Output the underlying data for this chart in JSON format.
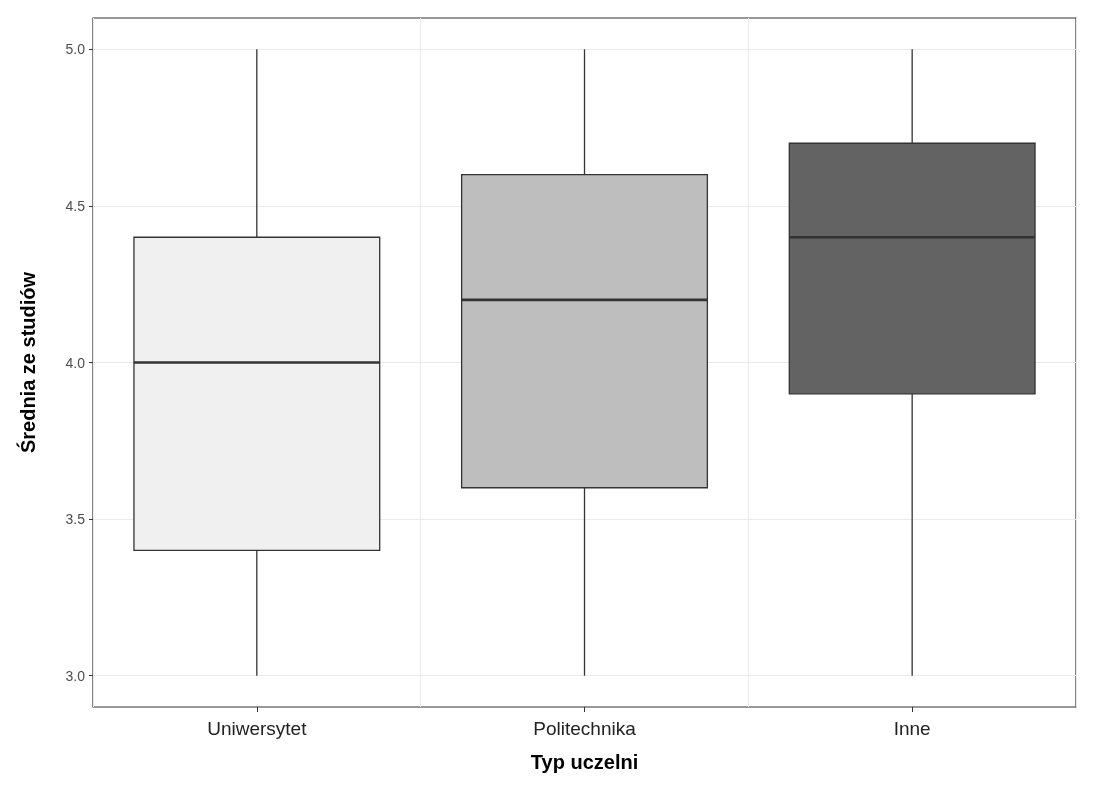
{
  "chart_data": {
    "type": "box",
    "xlabel": "Typ uczelni",
    "ylabel": "Średnia ze studiów",
    "categories": [
      "Uniwersytet",
      "Politechnika",
      "Inne"
    ],
    "boxes": [
      {
        "low": 3.0,
        "q1": 3.4,
        "median": 4.0,
        "q3": 4.4,
        "high": 5.0
      },
      {
        "low": 3.0,
        "q1": 3.6,
        "median": 4.2,
        "q3": 4.6,
        "high": 5.0
      },
      {
        "low": 3.0,
        "q1": 3.9,
        "median": 4.4,
        "q3": 4.7,
        "high": 5.0
      }
    ],
    "colors": [
      "#f0f0f0",
      "#bebebe",
      "#636363"
    ],
    "ylim": [
      2.9,
      5.1
    ],
    "yticks": [
      {
        "value": 3,
        "label": "3.0"
      },
      {
        "value": 3.5,
        "label": "3.5"
      },
      {
        "value": 4,
        "label": "4.0"
      },
      {
        "value": 4.5,
        "label": "4.5"
      },
      {
        "value": 5,
        "label": "5.0"
      }
    ],
    "grid": true
  }
}
